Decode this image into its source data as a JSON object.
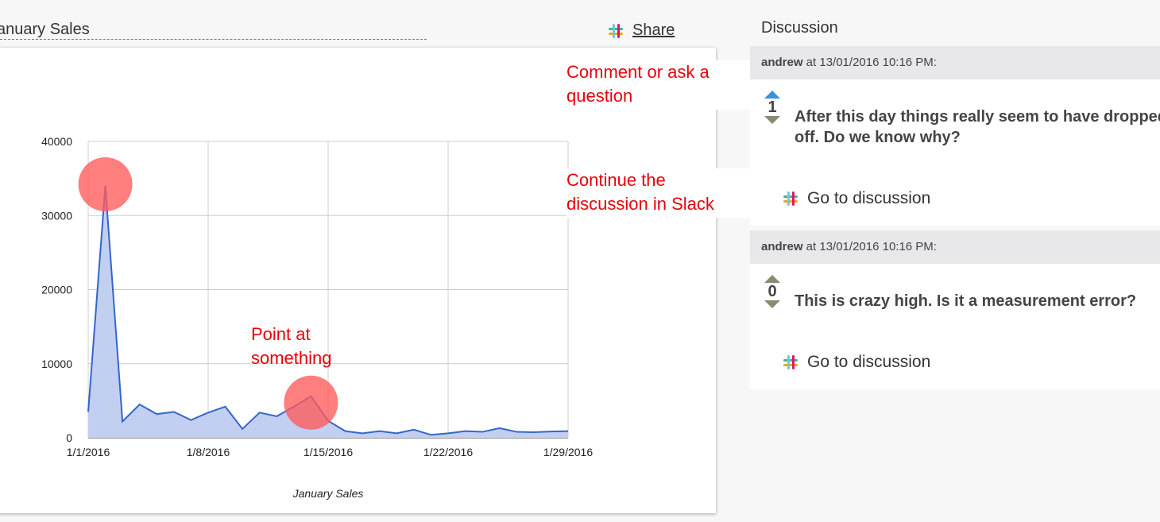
{
  "header": {
    "title": "January Sales"
  },
  "share": {
    "label": "Share",
    "icon": "slack-icon"
  },
  "annotations": {
    "comment": [
      "Comment or ask a",
      "question"
    ],
    "continue": [
      "Continue the",
      "discussion in Slack"
    ],
    "point": [
      "Point at",
      "something"
    ]
  },
  "colors": {
    "annotation": "#e8000b",
    "series_line": "#3366cc",
    "series_fill": "#c2cff0",
    "marker": "#ff5a5a",
    "vote_up_active": "#3c8fd8"
  },
  "discussion": {
    "title": "Discussion",
    "comments": [
      {
        "author": "andrew",
        "timestamp": " at 13/01/2016 10:16 PM:",
        "votes": "1",
        "text_line1": "After this day things really seem to have dropped",
        "text_line2": "off. Do we know why?",
        "link_label": "Go to discussion"
      },
      {
        "author": "andrew",
        "timestamp": " at 13/01/2016 10:16 PM:",
        "votes": "0",
        "text_line1": "This is crazy high. Is it a measurement error?",
        "link_label": "Go to discussion"
      }
    ]
  },
  "chart_data": {
    "type": "area",
    "title": "",
    "xlabel": "January Sales",
    "ylabel": "",
    "ylim": [
      0,
      40000
    ],
    "yticks": [
      "0",
      "10000",
      "20000",
      "30000",
      "40000"
    ],
    "xticks": [
      "1/1/2016",
      "1/8/2016",
      "1/15/2016",
      "1/22/2016",
      "1/29/2016"
    ],
    "grid": true,
    "x": [
      "1/1/2016",
      "1/2/2016",
      "1/3/2016",
      "1/4/2016",
      "1/5/2016",
      "1/6/2016",
      "1/7/2016",
      "1/8/2016",
      "1/9/2016",
      "1/10/2016",
      "1/11/2016",
      "1/12/2016",
      "1/13/2016",
      "1/14/2016",
      "1/15/2016",
      "1/16/2016",
      "1/17/2016",
      "1/18/2016",
      "1/19/2016",
      "1/20/2016",
      "1/21/2016",
      "1/22/2016",
      "1/23/2016",
      "1/24/2016",
      "1/25/2016",
      "1/26/2016",
      "1/27/2016",
      "1/28/2016",
      "1/29/2016"
    ],
    "values": [
      3500,
      34000,
      2200,
      4500,
      3200,
      3500,
      2400,
      3400,
      4200,
      1200,
      3400,
      2900,
      4200,
      5600,
      2300,
      900,
      600,
      900,
      600,
      1100,
      400,
      600,
      900,
      800,
      1300,
      800,
      750,
      850,
      900
    ],
    "highlights": [
      {
        "x": "1/2/2016",
        "y": 34000
      },
      {
        "x": "1/14/2016",
        "y": 5600
      }
    ]
  }
}
